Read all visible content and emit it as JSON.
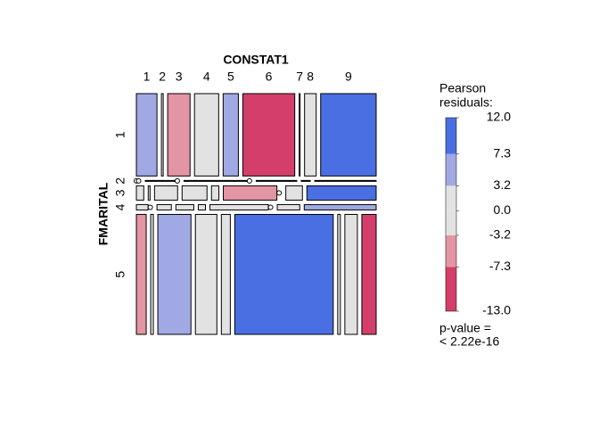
{
  "chart_data": {
    "type": "mosaic",
    "x_label": "CONSTAT1",
    "y_label": "FMARITAL",
    "columns": [
      "1",
      "2",
      "3",
      "4",
      "5",
      "6",
      "7",
      "8",
      "9"
    ],
    "rows": [
      "1",
      "2",
      "3",
      "4",
      "5"
    ],
    "row_shares": [
      92,
      1,
      16,
      6,
      134
    ],
    "cells": [
      [
        23,
        2,
        25,
        27,
        17,
        58,
        1,
        13,
        62
      ],
      [
        0,
        0,
        33,
        0,
        70,
        0,
        45,
        10,
        68
      ],
      [
        8,
        2,
        25,
        27,
        8,
        58,
        0,
        18,
        75
      ],
      [
        13,
        0,
        16,
        20,
        8,
        65,
        0,
        25,
        80
      ],
      [
        11,
        3,
        37,
        24,
        10,
        110,
        3,
        14,
        16
      ]
    ],
    "residuals": [
      [
        5,
        0,
        -5,
        1,
        4,
        -10,
        0,
        1,
        11
      ],
      [
        0,
        0,
        0,
        0,
        0,
        0,
        0,
        0,
        0
      ],
      [
        0,
        0,
        0,
        0,
        0,
        -5,
        0,
        0,
        10
      ],
      [
        0,
        0,
        0,
        0,
        0,
        0,
        0,
        0,
        5
      ],
      [
        -5,
        0,
        5,
        0,
        0,
        11,
        0,
        0,
        -10
      ]
    ],
    "legend": {
      "title": [
        "Pearson",
        "residuals:"
      ],
      "lim": [
        -13,
        12
      ],
      "ticks": [
        {
          "value": 12,
          "label": "12.0"
        },
        7.3,
        3.2,
        {
          "value": 0,
          "label": "0.0"
        },
        -3.2,
        -7.3,
        {
          "value": -13,
          "label": "-13.0"
        }
      ],
      "colors": [
        "#4a6fe3",
        "#a0a9e3",
        "#e2e2e2",
        "#e2e2e2",
        "#e495a5",
        "#d33f6a"
      ]
    },
    "note": [
      "p-value =",
      "< 2.22e-16"
    ]
  }
}
